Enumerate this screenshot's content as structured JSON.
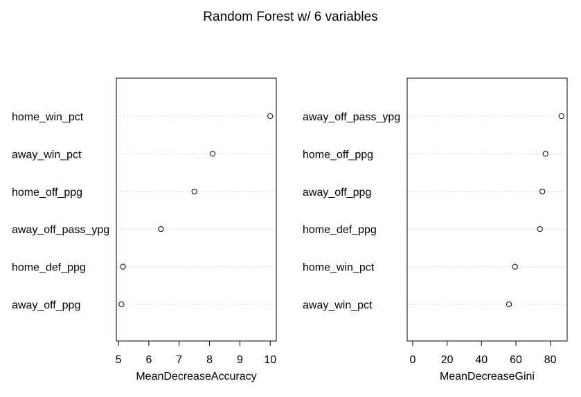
{
  "title": "Random Forest w/ 6 variables",
  "chart_data": [
    {
      "type": "scatter",
      "xlabel": "MeanDecreaseAccuracy",
      "xlim": [
        4.93,
        10.2
      ],
      "xticks": [
        5,
        6,
        7,
        8,
        9,
        10
      ],
      "tick_labels": [
        "5",
        "6",
        "7",
        "8",
        "9",
        "10"
      ],
      "grid": "dotted horizontal guide lines",
      "categories": [
        "home_win_pct",
        "away_win_pct",
        "home_off_ppg",
        "away_off_pass_ypg",
        "home_def_ppg",
        "away_off_ppg"
      ],
      "values": [
        10.0,
        8.1,
        7.5,
        6.4,
        5.15,
        5.1
      ]
    },
    {
      "type": "scatter",
      "xlabel": "MeanDecreaseGini",
      "xlim": [
        -3.2,
        89.8
      ],
      "xticks": [
        0,
        20,
        40,
        60,
        80
      ],
      "tick_labels": [
        "0",
        "20",
        "40",
        "60",
        "80"
      ],
      "grid": "dotted horizontal guide lines",
      "categories": [
        "away_off_pass_ypg",
        "home_off_ppg",
        "away_off_ppg",
        "home_def_ppg",
        "home_win_pct",
        "away_win_pct"
      ],
      "values": [
        86.5,
        77.2,
        75.4,
        74.0,
        59.5,
        56.0
      ]
    }
  ]
}
